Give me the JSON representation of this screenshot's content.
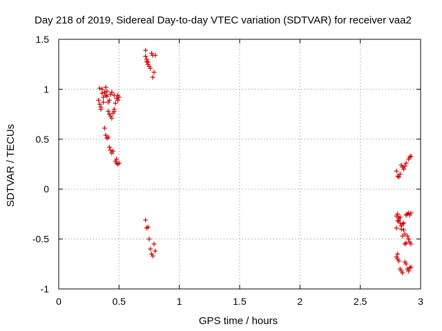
{
  "chart_data": {
    "type": "scatter",
    "title": "Day 218 of 2019, Sidereal Day-to-day VTEC variation (SDTVAR) for receiver vaa2",
    "xlabel": "GPS time / hours",
    "ylabel": "SDTVAR / TECUs",
    "xlim": [
      0,
      3
    ],
    "ylim": [
      -1,
      1.5
    ],
    "xticks": [
      0,
      0.5,
      1,
      1.5,
      2,
      2.5,
      3
    ],
    "xtick_labels": [
      "0",
      "0.5",
      "1",
      "1.5",
      "2",
      "2.5",
      "3"
    ],
    "yticks": [
      -1,
      -0.5,
      0,
      0.5,
      1,
      1.5
    ],
    "ytick_labels": [
      "-1",
      "-0.5",
      "0",
      "0.5",
      "1",
      "1.5"
    ],
    "grid": true,
    "marker": "+",
    "color": "#cc0000",
    "series": [
      {
        "name": "SDTVAR",
        "points": [
          [
            0.33,
            0.89
          ],
          [
            0.34,
            0.85
          ],
          [
            0.34,
            1.01
          ],
          [
            0.35,
            0.82
          ],
          [
            0.35,
            0.8
          ],
          [
            0.36,
            0.96
          ],
          [
            0.36,
            1.0
          ],
          [
            0.37,
            0.92
          ],
          [
            0.37,
            0.87
          ],
          [
            0.38,
            0.97
          ],
          [
            0.38,
            0.61
          ],
          [
            0.39,
            0.94
          ],
          [
            0.39,
            1.02
          ],
          [
            0.39,
            0.54
          ],
          [
            0.4,
            0.51
          ],
          [
            0.4,
            0.98
          ],
          [
            0.4,
            0.93
          ],
          [
            0.41,
            0.87
          ],
          [
            0.41,
            0.78
          ],
          [
            0.41,
            0.52
          ],
          [
            0.42,
            0.89
          ],
          [
            0.42,
            0.75
          ],
          [
            0.42,
            0.42
          ],
          [
            0.43,
            0.73
          ],
          [
            0.43,
            0.95
          ],
          [
            0.43,
            0.39
          ],
          [
            0.44,
            0.97
          ],
          [
            0.44,
            0.71
          ],
          [
            0.44,
            0.36
          ],
          [
            0.45,
            0.76
          ],
          [
            0.45,
            0.38
          ],
          [
            0.46,
            0.78
          ],
          [
            0.46,
            0.94
          ],
          [
            0.46,
            0.8
          ],
          [
            0.47,
            0.86
          ],
          [
            0.47,
            0.28
          ],
          [
            0.48,
            0.91
          ],
          [
            0.48,
            0.26
          ],
          [
            0.48,
            0.3
          ],
          [
            0.49,
            0.94
          ],
          [
            0.49,
            0.89
          ],
          [
            0.49,
            0.25
          ],
          [
            0.5,
            0.92
          ],
          [
            0.5,
            0.26
          ],
          [
            0.72,
            1.39
          ],
          [
            0.72,
            1.33
          ],
          [
            0.73,
            1.3
          ],
          [
            0.73,
            1.28
          ],
          [
            0.74,
            1.27
          ],
          [
            0.74,
            1.25
          ],
          [
            0.75,
            1.23
          ],
          [
            0.76,
            1.21
          ],
          [
            0.77,
            1.36
          ],
          [
            0.78,
            1.34
          ],
          [
            0.78,
            1.12
          ],
          [
            0.79,
            1.17
          ],
          [
            0.8,
            1.34
          ],
          [
            0.72,
            -0.31
          ],
          [
            0.73,
            -0.39
          ],
          [
            0.74,
            -0.38
          ],
          [
            0.75,
            -0.5
          ],
          [
            0.76,
            -0.6
          ],
          [
            0.77,
            -0.65
          ],
          [
            0.78,
            -0.67
          ],
          [
            0.79,
            -0.55
          ],
          [
            0.8,
            -0.62
          ],
          [
            2.8,
            0.18
          ],
          [
            2.81,
            0.13
          ],
          [
            2.82,
            0.12
          ],
          [
            2.83,
            0.15
          ],
          [
            2.84,
            0.24
          ],
          [
            2.85,
            0.22
          ],
          [
            2.86,
            0.2
          ],
          [
            2.87,
            0.23
          ],
          [
            2.88,
            0.26
          ],
          [
            2.9,
            0.3
          ],
          [
            2.91,
            0.32
          ],
          [
            2.92,
            0.33
          ],
          [
            2.8,
            -0.27
          ],
          [
            2.8,
            -0.39
          ],
          [
            2.81,
            -0.25
          ],
          [
            2.81,
            -0.32
          ],
          [
            2.82,
            -0.29
          ],
          [
            2.82,
            -0.31
          ],
          [
            2.83,
            -0.34
          ],
          [
            2.83,
            -0.28
          ],
          [
            2.84,
            -0.37
          ],
          [
            2.84,
            -0.4
          ],
          [
            2.85,
            -0.47
          ],
          [
            2.85,
            -0.35
          ],
          [
            2.86,
            -0.41
          ],
          [
            2.86,
            -0.34
          ],
          [
            2.87,
            -0.55
          ],
          [
            2.87,
            -0.45
          ],
          [
            2.88,
            -0.54
          ],
          [
            2.88,
            -0.26
          ],
          [
            2.89,
            -0.25
          ],
          [
            2.89,
            -0.47
          ],
          [
            2.9,
            -0.5
          ],
          [
            2.9,
            -0.24
          ],
          [
            2.91,
            -0.53
          ],
          [
            2.91,
            -0.26
          ],
          [
            2.92,
            -0.55
          ],
          [
            2.92,
            -0.24
          ],
          [
            2.8,
            -0.68
          ],
          [
            2.81,
            -0.7
          ],
          [
            2.81,
            -0.65
          ],
          [
            2.82,
            -0.72
          ],
          [
            2.83,
            -0.8
          ],
          [
            2.84,
            -0.82
          ],
          [
            2.85,
            -0.84
          ],
          [
            2.87,
            -0.73
          ],
          [
            2.88,
            -0.75
          ],
          [
            2.89,
            -0.8
          ],
          [
            2.9,
            -0.82
          ],
          [
            2.91,
            -0.79
          ],
          [
            2.92,
            -0.78
          ]
        ]
      }
    ]
  }
}
